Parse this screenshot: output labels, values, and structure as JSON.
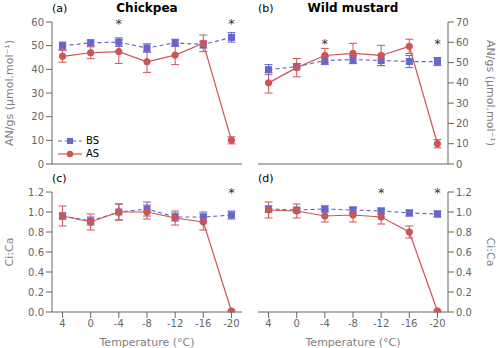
{
  "chart_data": [
    {
      "type": "line",
      "title": "Chickpea",
      "ylabel": "AN/gs (µmol.mol⁻¹)",
      "annotations": [
        {
          "text": "(a)"
        },
        {
          "text": "*",
          "x": -4,
          "y": 59.5
        },
        {
          "text": "*",
          "x": -20,
          "y": 59.5
        }
      ],
      "x": [
        4,
        0,
        -4,
        -8,
        -12,
        -16,
        -20
      ],
      "xlim": [
        5.5,
        -21.5
      ],
      "xticks": [
        4,
        0,
        -4,
        -8,
        -12,
        -16,
        -20
      ],
      "ylim": [
        0,
        60
      ],
      "yticks": [
        0,
        10,
        20,
        30,
        40,
        50,
        60
      ],
      "tick_labels": "y",
      "grid": false,
      "legend": "lower left",
      "series": [
        {
          "name": "BS",
          "color": "#6666cc",
          "marker": "square",
          "line_style": "dashed",
          "values": [
            50.0,
            51.2,
            51.5,
            49.0,
            51.2,
            50.5,
            53.5
          ],
          "errors": [
            1.5,
            1.2,
            1.8,
            1.8,
            1.5,
            1.5,
            2.0
          ]
        },
        {
          "name": "AS",
          "color": "#cc5555",
          "marker": "circle",
          "line_style": "solid",
          "values": [
            45.5,
            47.0,
            47.5,
            43.2,
            46.0,
            51.0,
            10.0
          ],
          "errors": [
            2.5,
            2.5,
            5.0,
            4.5,
            4.0,
            3.5,
            1.5
          ]
        }
      ]
    },
    {
      "type": "line",
      "title": "Wild mustard",
      "ylabel": "AN/gs (µmol.mol⁻¹)",
      "annotations": [
        {
          "text": "(b)"
        },
        {
          "text": "*",
          "x": -4,
          "y": 59.5
        },
        {
          "text": "*",
          "x": -20,
          "y": 59.5
        }
      ],
      "x": [
        4,
        0,
        -4,
        -8,
        -12,
        -16,
        -20
      ],
      "xlim": [
        5.5,
        -21.5
      ],
      "xticks": [
        4,
        0,
        -4,
        -8,
        -12,
        -16,
        -20
      ],
      "ylim": [
        0,
        70
      ],
      "yticks": [
        0,
        10,
        20,
        30,
        40,
        50,
        60,
        70
      ],
      "tick_labels": "y",
      "grid": false,
      "series": [
        {
          "name": "BS",
          "color": "#6666cc",
          "marker": "square",
          "line_style": "dashed",
          "values": [
            46.5,
            48.0,
            51.0,
            51.5,
            51.0,
            50.5,
            50.5
          ],
          "errors": [
            2.5,
            1.5,
            2.0,
            2.0,
            2.5,
            3.0,
            2.0
          ]
        },
        {
          "name": "AS",
          "color": "#cc5555",
          "marker": "circle",
          "line_style": "solid",
          "values": [
            40.0,
            47.5,
            53.5,
            54.5,
            53.5,
            58.0,
            10.0
          ],
          "errors": [
            5.0,
            4.5,
            3.5,
            5.0,
            5.0,
            3.5,
            2.0
          ]
        }
      ]
    },
    {
      "type": "line",
      "ylabel": "Ci:Ca",
      "xlabel": "Temperature (°C)",
      "annotations": [
        {
          "text": "(c)"
        },
        {
          "text": "*",
          "x": -20,
          "y": 1.195
        }
      ],
      "x": [
        4,
        0,
        -4,
        -8,
        -12,
        -16,
        -20
      ],
      "xlim": [
        5.5,
        -21.5
      ],
      "xticks": [
        4,
        0,
        -4,
        -8,
        -12,
        -16,
        -20
      ],
      "ylim": [
        0,
        1.2
      ],
      "yticks": [
        {
          "value": 0,
          "label": "0.0"
        },
        0.2,
        0.4,
        0.6,
        0.8,
        {
          "value": 1,
          "label": "1.0"
        },
        1.2
      ],
      "grid": false,
      "series": [
        {
          "name": "BS",
          "color": "#6666cc",
          "marker": "square",
          "line_style": "dashed",
          "values": [
            0.96,
            0.91,
            1.0,
            1.03,
            0.95,
            0.95,
            0.97
          ],
          "errors": [
            0.03,
            0.04,
            0.08,
            0.07,
            0.04,
            0.05,
            0.04
          ]
        },
        {
          "name": "AS",
          "color": "#cc5555",
          "marker": "circle",
          "line_style": "solid",
          "values": [
            0.96,
            0.9,
            1.0,
            1.0,
            0.94,
            0.9,
            0.01
          ],
          "errors": [
            0.1,
            0.08,
            0.08,
            0.07,
            0.07,
            0.08,
            0.01
          ]
        }
      ]
    },
    {
      "type": "line",
      "ylabel": "Ci:Ca",
      "xlabel": "Temperature (°C)",
      "annotations": [
        {
          "text": "(d)"
        },
        {
          "text": "*",
          "x": -12,
          "y": 1.195
        },
        {
          "text": "*",
          "x": -20,
          "y": 1.195
        }
      ],
      "x": [
        4,
        0,
        -4,
        -8,
        -12,
        -16,
        -20
      ],
      "xlim": [
        5.5,
        -21.5
      ],
      "xticks": [
        4,
        0,
        -4,
        -8,
        -12,
        -16,
        -20
      ],
      "ylim": [
        0,
        1.2
      ],
      "yticks": [
        {
          "value": 0,
          "label": "0.0"
        },
        0.2,
        0.4,
        0.6,
        0.8,
        {
          "value": 1,
          "label": "1.0"
        },
        1.2
      ],
      "grid": false,
      "series": [
        {
          "name": "BS",
          "color": "#6666cc",
          "marker": "square",
          "line_style": "dashed",
          "values": [
            1.03,
            1.02,
            1.03,
            1.02,
            1.01,
            0.99,
            0.98
          ],
          "errors": [
            0.03,
            0.02,
            0.03,
            0.03,
            0.03,
            0.03,
            0.03
          ]
        },
        {
          "name": "AS",
          "color": "#cc5555",
          "marker": "circle",
          "line_style": "solid",
          "values": [
            1.02,
            1.01,
            0.96,
            0.97,
            0.95,
            0.8,
            0.01
          ],
          "errors": [
            0.08,
            0.07,
            0.06,
            0.07,
            0.07,
            0.06,
            0.01
          ]
        }
      ]
    }
  ]
}
